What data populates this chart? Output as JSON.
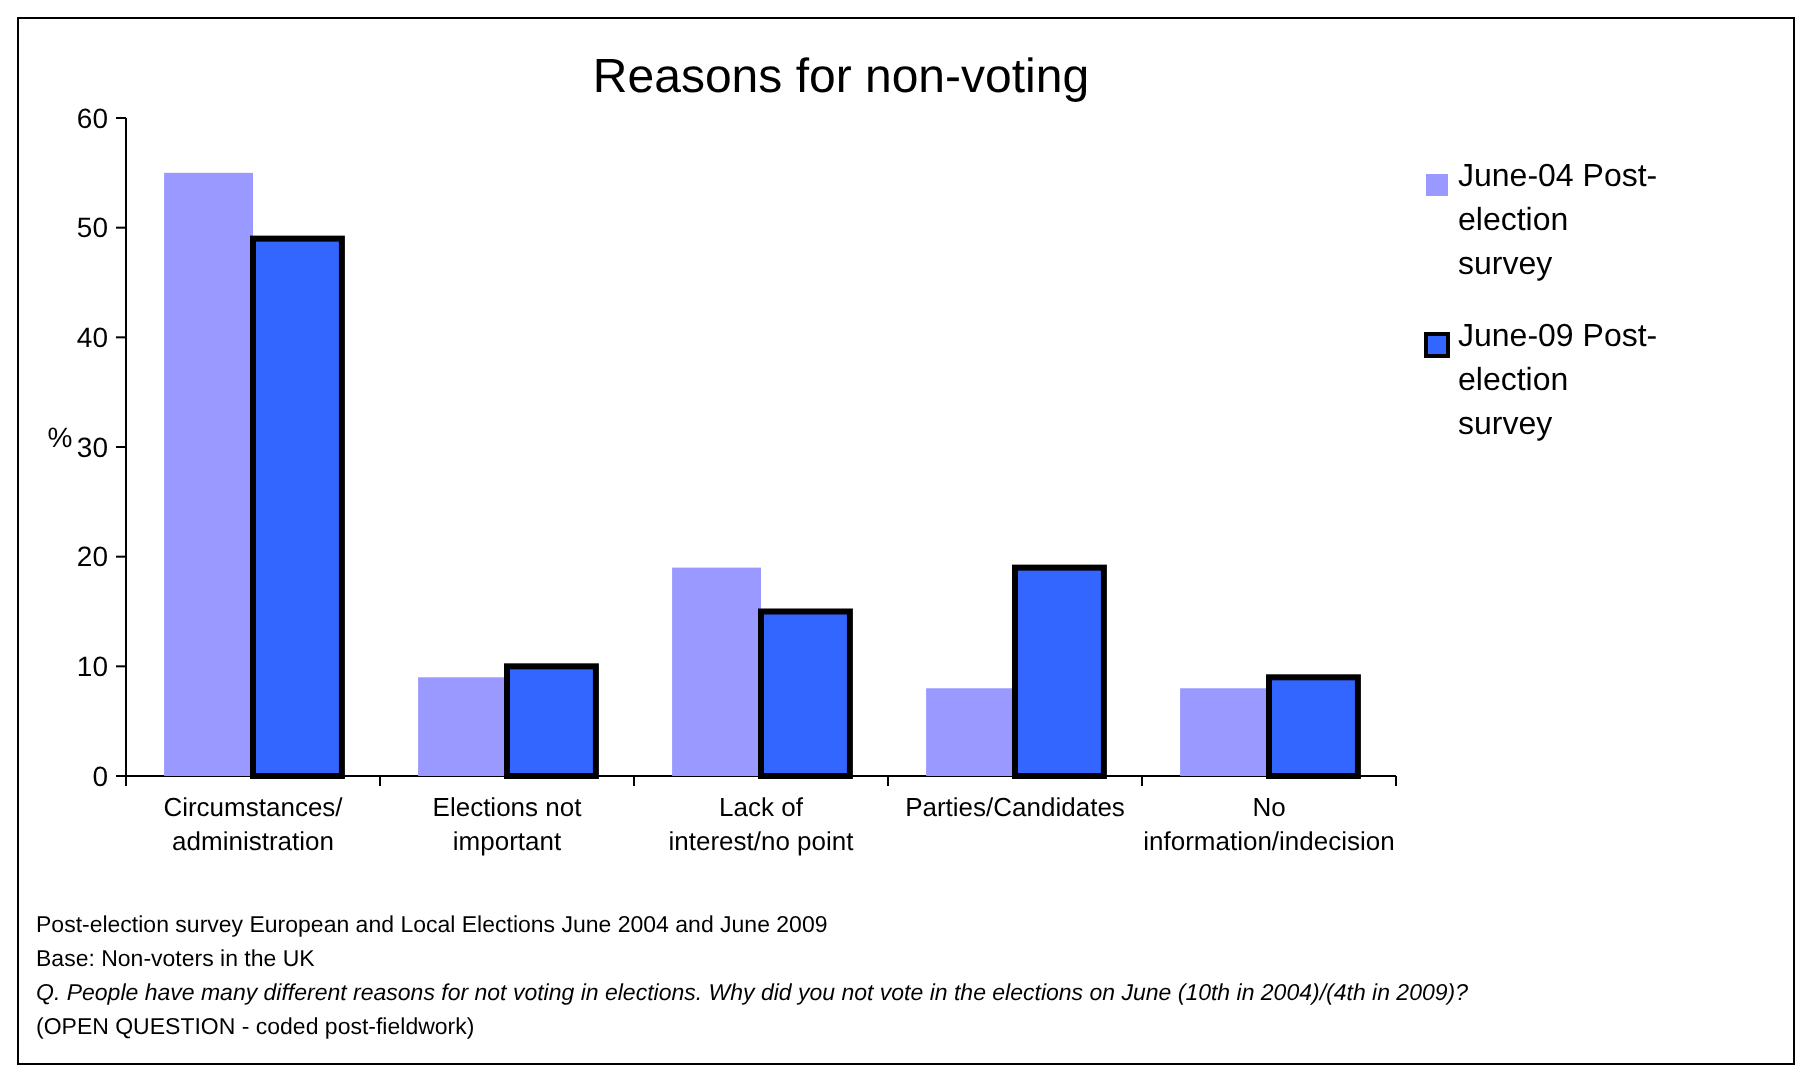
{
  "chart_data": {
    "type": "bar",
    "title": "Reasons for non-voting",
    "ylabel": "%",
    "categories": [
      "Circumstances/ administration",
      "Elections not important",
      "Lack of interest/no point",
      "Parties/Candidates",
      "No information/indecision"
    ],
    "series": [
      {
        "name": "June-04 Post-election survey",
        "color": "#9999ff",
        "values": [
          55,
          9,
          19,
          8,
          8
        ]
      },
      {
        "name": "June-09 Post-election survey",
        "color": "#3366ff",
        "values": [
          49,
          10,
          15,
          19,
          9
        ]
      }
    ],
    "ylim": [
      0,
      60
    ],
    "yticks": [
      0,
      10,
      20,
      30,
      40,
      50,
      60
    ],
    "legend": "right",
    "annotations": [
      "Post-election survey European and Local Elections June 2004 and June 2009",
      "Base: Non-voters in the UK",
      "Q. People have many different reasons for not voting in elections. Why did you not vote in the elections on June (10th in 2004)/(4th in 2009)?",
      "(OPEN QUESTION - coded post-fieldwork)"
    ]
  }
}
